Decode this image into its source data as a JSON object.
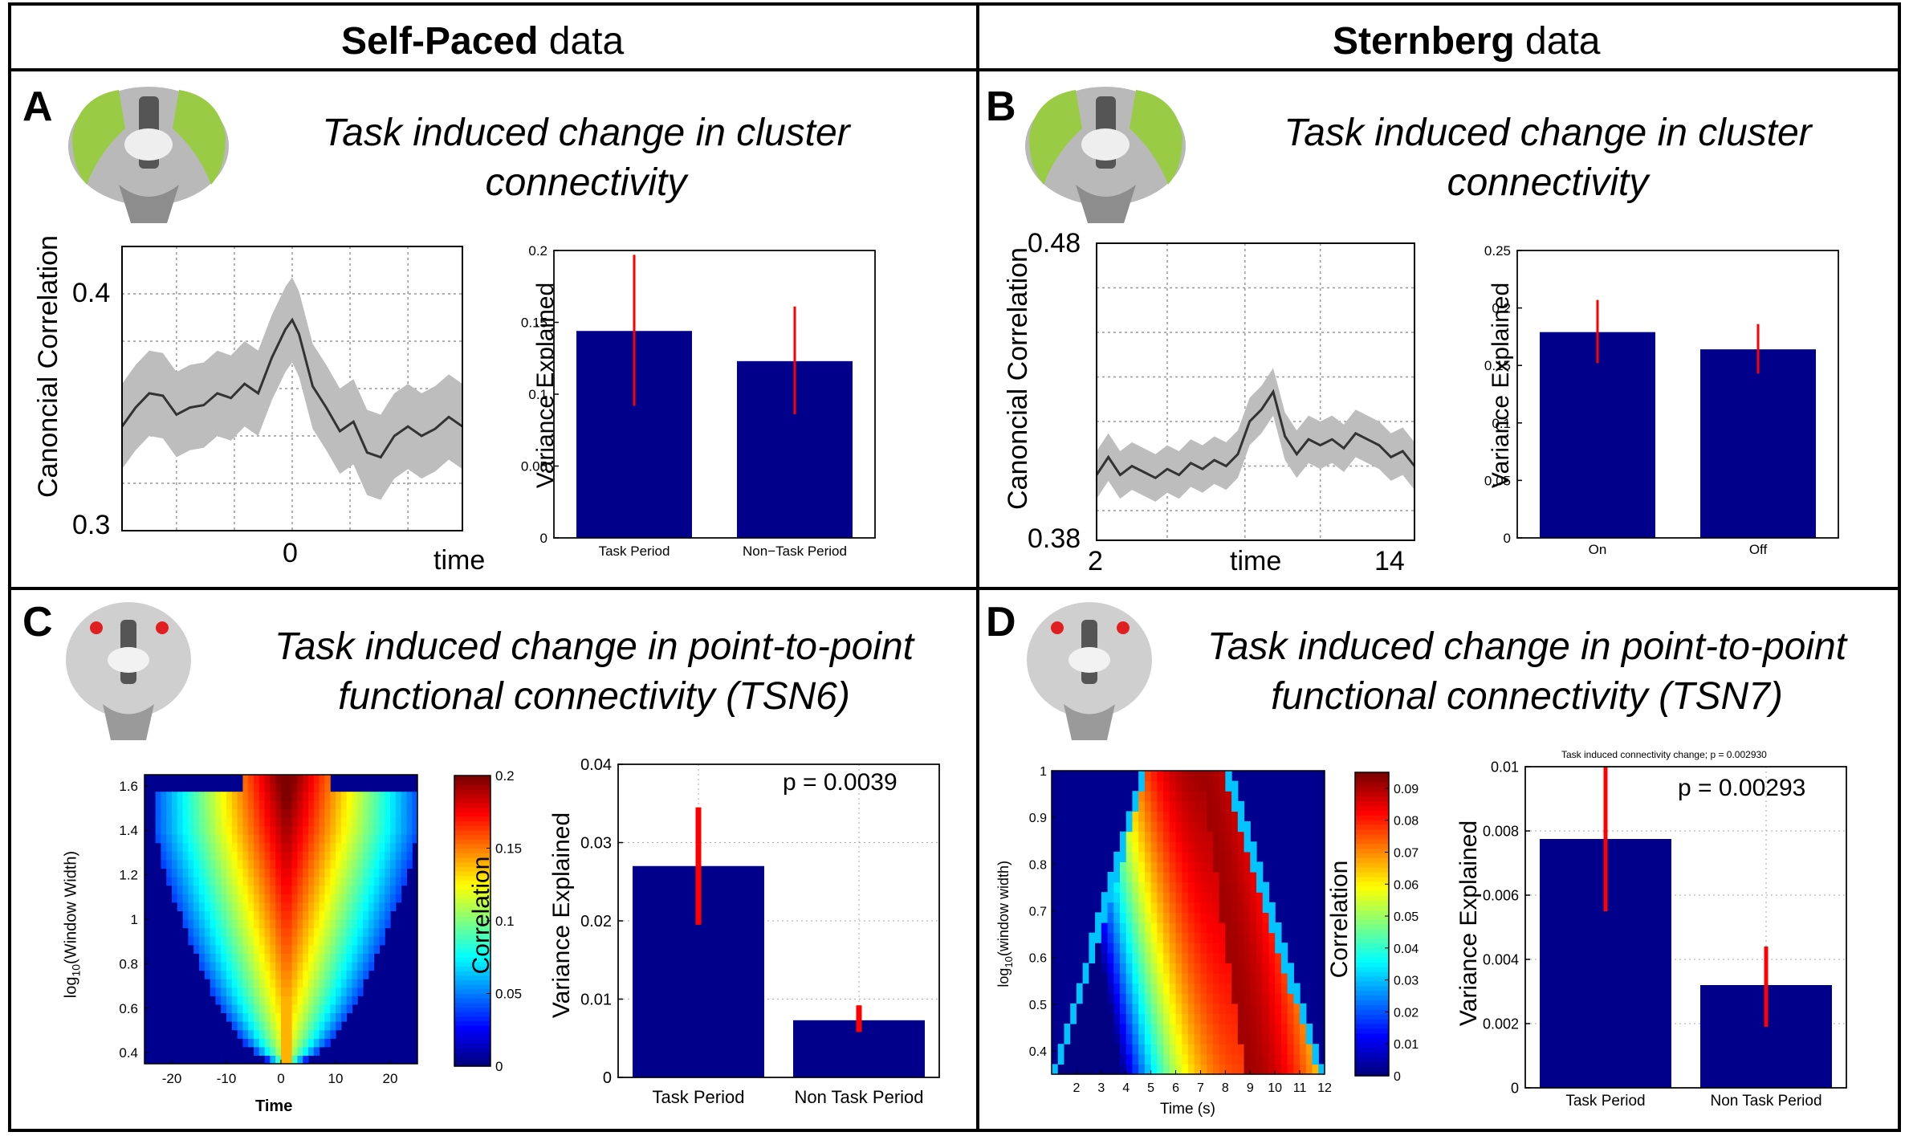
{
  "columns": [
    {
      "bold": "Self-Paced",
      "rest": " data"
    },
    {
      "bold": "Sternberg",
      "rest": " data"
    }
  ],
  "panels": {
    "A": {
      "letter": "A",
      "title_lines": [
        "Task induced change in cluster",
        "connectivity"
      ],
      "line_plot": {
        "ylabel": "Canoncial Correlation",
        "y_ticks": [
          "0.4",
          "0.3"
        ],
        "x_ticks": [
          "0"
        ],
        "xlabel": "time"
      },
      "bar_plot": {
        "ylabel": "Variance Explained",
        "y_ticks": [
          "0.2",
          "0.15",
          "0.1",
          "0.05",
          "0"
        ],
        "categories": [
          "Task Period",
          "Non−Task Period"
        ]
      }
    },
    "B": {
      "letter": "B",
      "title_lines": [
        "Task induced change in cluster",
        "connectivity"
      ],
      "line_plot": {
        "ylabel": "Canoncial Correlation",
        "y_ticks": [
          "0.48",
          "0.38"
        ],
        "x_ticks": [
          "2",
          "14"
        ],
        "xlabel": "time"
      },
      "bar_plot": {
        "ylabel": "Variance Explained",
        "y_ticks": [
          "0.25",
          "0.2",
          "0.15",
          "0.1",
          "0.05",
          "0"
        ],
        "categories": [
          "On",
          "Off"
        ]
      }
    },
    "C": {
      "letter": "C",
      "title_lines": [
        "Task induced change in point-to-point",
        "functional connectivity (TSN6)"
      ],
      "heatmap": {
        "ylabel_main": "log",
        "ylabel_sub": "10",
        "ylabel_rest": "(Window Width)",
        "y_ticks": [
          "1.6",
          "1.4",
          "1.2",
          "1",
          "0.8",
          "0.6",
          "0.4"
        ],
        "x_ticks": [
          "-20",
          "-10",
          "0",
          "10",
          "20"
        ],
        "xlabel": "Time",
        "colorbar_label": "Correlation",
        "colorbar_ticks": [
          "0.2",
          "0.15",
          "0.1",
          "0.05",
          "0"
        ]
      },
      "bar_plot": {
        "ylabel": "Variance Explained",
        "y_ticks": [
          "0.04",
          "0.03",
          "0.02",
          "0.01",
          "0"
        ],
        "categories": [
          "Task Period",
          "Non Task Period"
        ],
        "p_text": "p = 0.0039"
      }
    },
    "D": {
      "letter": "D",
      "title_lines": [
        "Task induced change in point-to-point",
        "functional connectivity (TSN7)"
      ],
      "heatmap": {
        "ylabel_main": "log",
        "ylabel_sub": "10",
        "ylabel_rest": "(window width)",
        "y_ticks": [
          "1",
          "0.9",
          "0.8",
          "0.7",
          "0.6",
          "0.5",
          "0.4"
        ],
        "x_ticks": [
          "2",
          "3",
          "4",
          "5",
          "6",
          "7",
          "8",
          "9",
          "10",
          "11",
          "12"
        ],
        "xlabel": "Time (s)",
        "colorbar_label": "Correlation",
        "colorbar_ticks": [
          "0.09",
          "0.08",
          "0.07",
          "0.06",
          "0.05",
          "0.04",
          "0.03",
          "0.02",
          "0.01",
          "0"
        ]
      },
      "bar_plot": {
        "title": "Task induced connectivity change; p = 0.002930",
        "ylabel": "Variance Explained",
        "y_ticks": [
          "0.01",
          "0.008",
          "0.006",
          "0.004",
          "0.002",
          "0"
        ],
        "categories": [
          "Task Period",
          "Non Task Period"
        ],
        "p_text": "p = 0.00293"
      }
    }
  },
  "chart_data": [
    {
      "type": "line",
      "panel": "A",
      "ylabel": "Canoncial Correlation",
      "xlabel": "time",
      "ylim": [
        0.3,
        0.42
      ],
      "xlim": [
        -25,
        25
      ],
      "x": [
        -25,
        -23,
        -21,
        -19,
        -17,
        -15,
        -13,
        -11,
        -9,
        -7,
        -5,
        -3,
        -1,
        0,
        1,
        3,
        5,
        7,
        9,
        11,
        13,
        15,
        17,
        19,
        21,
        23,
        25
      ],
      "y": [
        0.344,
        0.352,
        0.358,
        0.357,
        0.349,
        0.352,
        0.353,
        0.358,
        0.356,
        0.362,
        0.358,
        0.373,
        0.385,
        0.389,
        0.383,
        0.361,
        0.352,
        0.342,
        0.346,
        0.333,
        0.331,
        0.34,
        0.344,
        0.34,
        0.343,
        0.348,
        0.344
      ],
      "band": 0.018
    },
    {
      "type": "bar",
      "panel": "A",
      "categories": [
        "Task Period",
        "Non−Task Period"
      ],
      "values": [
        0.144,
        0.123
      ],
      "errors": [
        [
          0.092,
          0.197
        ],
        [
          0.086,
          0.161
        ]
      ],
      "ylim": [
        0,
        0.2
      ],
      "ylabel": "Variance Explained"
    },
    {
      "type": "line",
      "panel": "B",
      "ylabel": "Canoncial Correlation",
      "xlabel": "time",
      "ylim": [
        0.38,
        0.48
      ],
      "xlim": [
        1.5,
        15
      ],
      "x": [
        1.5,
        2,
        2.5,
        3,
        3.5,
        4,
        4.5,
        5,
        5.5,
        6,
        6.5,
        7,
        7.5,
        8,
        8.5,
        9,
        9.5,
        10,
        10.5,
        11,
        11.5,
        12,
        12.5,
        13,
        13.5,
        14,
        14.5,
        15
      ],
      "y": [
        0.402,
        0.408,
        0.402,
        0.405,
        0.403,
        0.401,
        0.404,
        0.402,
        0.406,
        0.404,
        0.407,
        0.405,
        0.409,
        0.42,
        0.424,
        0.43,
        0.415,
        0.409,
        0.414,
        0.412,
        0.414,
        0.411,
        0.416,
        0.414,
        0.412,
        0.408,
        0.41,
        0.405
      ],
      "band": 0.008
    },
    {
      "type": "bar",
      "panel": "B",
      "categories": [
        "On",
        "Off"
      ],
      "values": [
        0.179,
        0.164
      ],
      "errors": [
        [
          0.152,
          0.207
        ],
        [
          0.143,
          0.186
        ]
      ],
      "ylim": [
        0,
        0.25
      ],
      "ylabel": "Variance Explained"
    },
    {
      "type": "heatmap",
      "panel": "C",
      "xlabel": "Time",
      "xlim": [
        -25,
        25
      ],
      "ylim": [
        0.35,
        1.65
      ],
      "zlim": [
        0,
        0.2
      ],
      "colorbar_label": "Correlation"
    },
    {
      "type": "bar",
      "panel": "C",
      "categories": [
        "Task Period",
        "Non Task Period"
      ],
      "values": [
        0.027,
        0.0073
      ],
      "errors": [
        [
          0.0195,
          0.0345
        ],
        [
          0.0058,
          0.0092
        ]
      ],
      "ylim": [
        0,
        0.04
      ],
      "ylabel": "Variance Explained",
      "annotation": "p = 0.0039"
    },
    {
      "type": "heatmap",
      "panel": "D",
      "xlabel": "Time (s)",
      "xlim": [
        1,
        12
      ],
      "ylim": [
        0.35,
        1.0
      ],
      "zlim": [
        0,
        0.095
      ],
      "colorbar_label": "Correlation"
    },
    {
      "type": "bar",
      "panel": "D",
      "title": "Task induced connectivity change; p = 0.002930",
      "categories": [
        "Task Period",
        "Non Task Period"
      ],
      "values": [
        0.00775,
        0.0032
      ],
      "errors": [
        [
          0.0055,
          0.01
        ],
        [
          0.0019,
          0.0044
        ]
      ],
      "ylim": [
        0,
        0.01
      ],
      "ylabel": "Variance Explained",
      "annotation": "p = 0.00293"
    }
  ]
}
